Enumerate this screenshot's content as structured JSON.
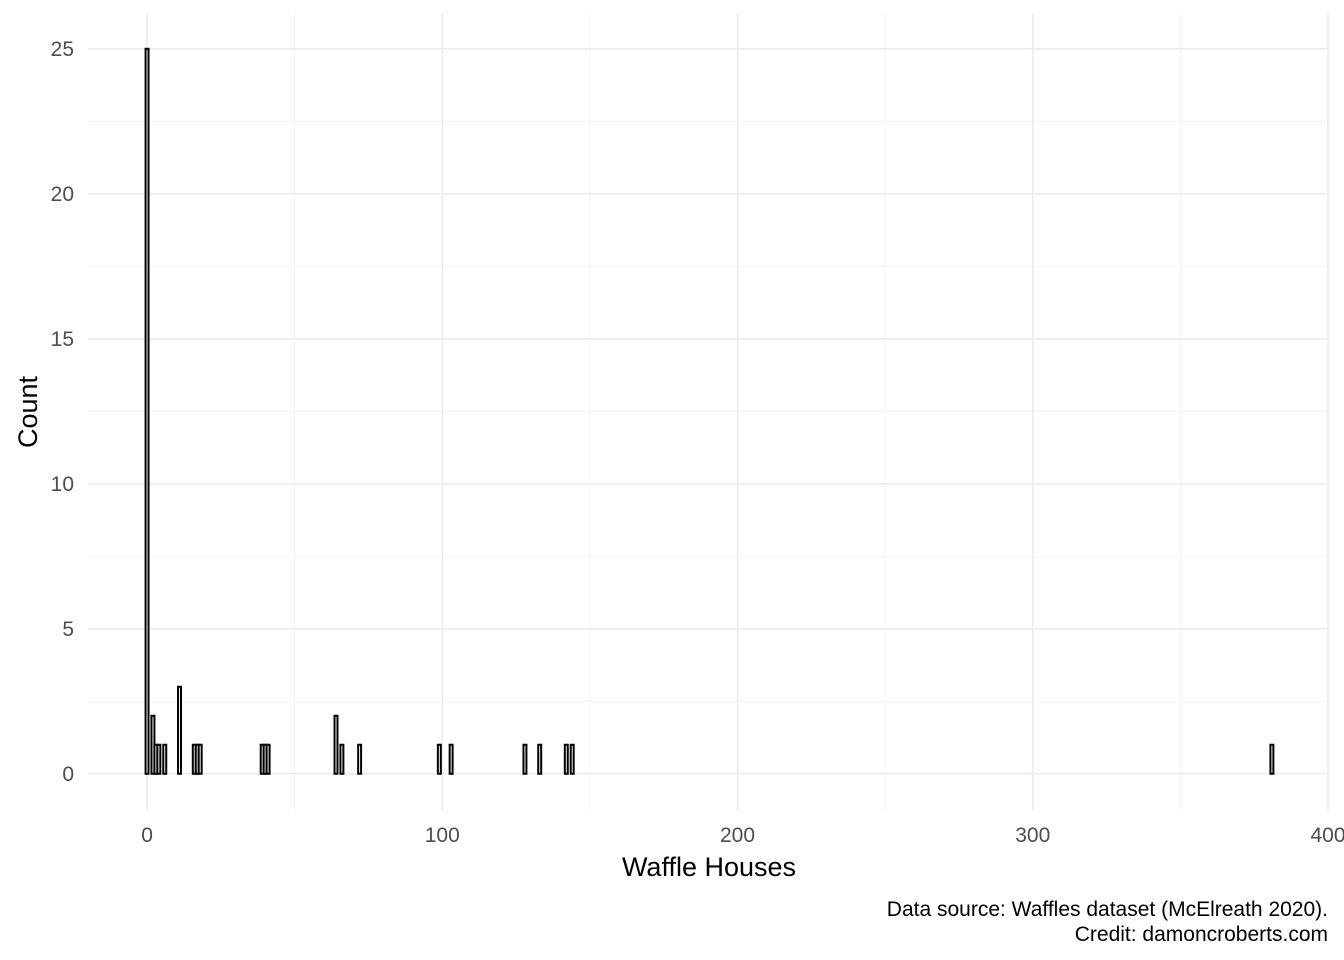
{
  "chart_data": {
    "type": "bar",
    "xlabel": "Waffle Houses",
    "ylabel": "Count",
    "caption": [
      "Data source: Waffles dataset (McElreath 2020).",
      "Credit: damoncroberts.com"
    ],
    "xlim": [
      -20,
      400
    ],
    "ylim": [
      -1.25,
      26.2
    ],
    "x_ticks": [
      0,
      100,
      200,
      300,
      400
    ],
    "x_tick_labels": [
      "0",
      "100",
      "200",
      "300",
      "400"
    ],
    "y_ticks": [
      0,
      5,
      10,
      15,
      20,
      25
    ],
    "y_tick_labels": [
      "0",
      "5",
      "10",
      "15",
      "20",
      "25"
    ],
    "grid": true,
    "bin_width": 1,
    "bars": [
      {
        "x": 0,
        "count": 25
      },
      {
        "x": 2,
        "count": 2
      },
      {
        "x": 3,
        "count": 1
      },
      {
        "x": 4,
        "count": 1
      },
      {
        "x": 6,
        "count": 1
      },
      {
        "x": 11,
        "count": 3
      },
      {
        "x": 16,
        "count": 1
      },
      {
        "x": 17,
        "count": 1
      },
      {
        "x": 18,
        "count": 1
      },
      {
        "x": 39,
        "count": 1
      },
      {
        "x": 40,
        "count": 1
      },
      {
        "x": 41,
        "count": 1
      },
      {
        "x": 64,
        "count": 2
      },
      {
        "x": 66,
        "count": 1
      },
      {
        "x": 72,
        "count": 1
      },
      {
        "x": 99,
        "count": 1
      },
      {
        "x": 103,
        "count": 1
      },
      {
        "x": 128,
        "count": 1
      },
      {
        "x": 133,
        "count": 1
      },
      {
        "x": 142,
        "count": 1
      },
      {
        "x": 144,
        "count": 1
      },
      {
        "x": 381,
        "count": 1
      }
    ]
  }
}
